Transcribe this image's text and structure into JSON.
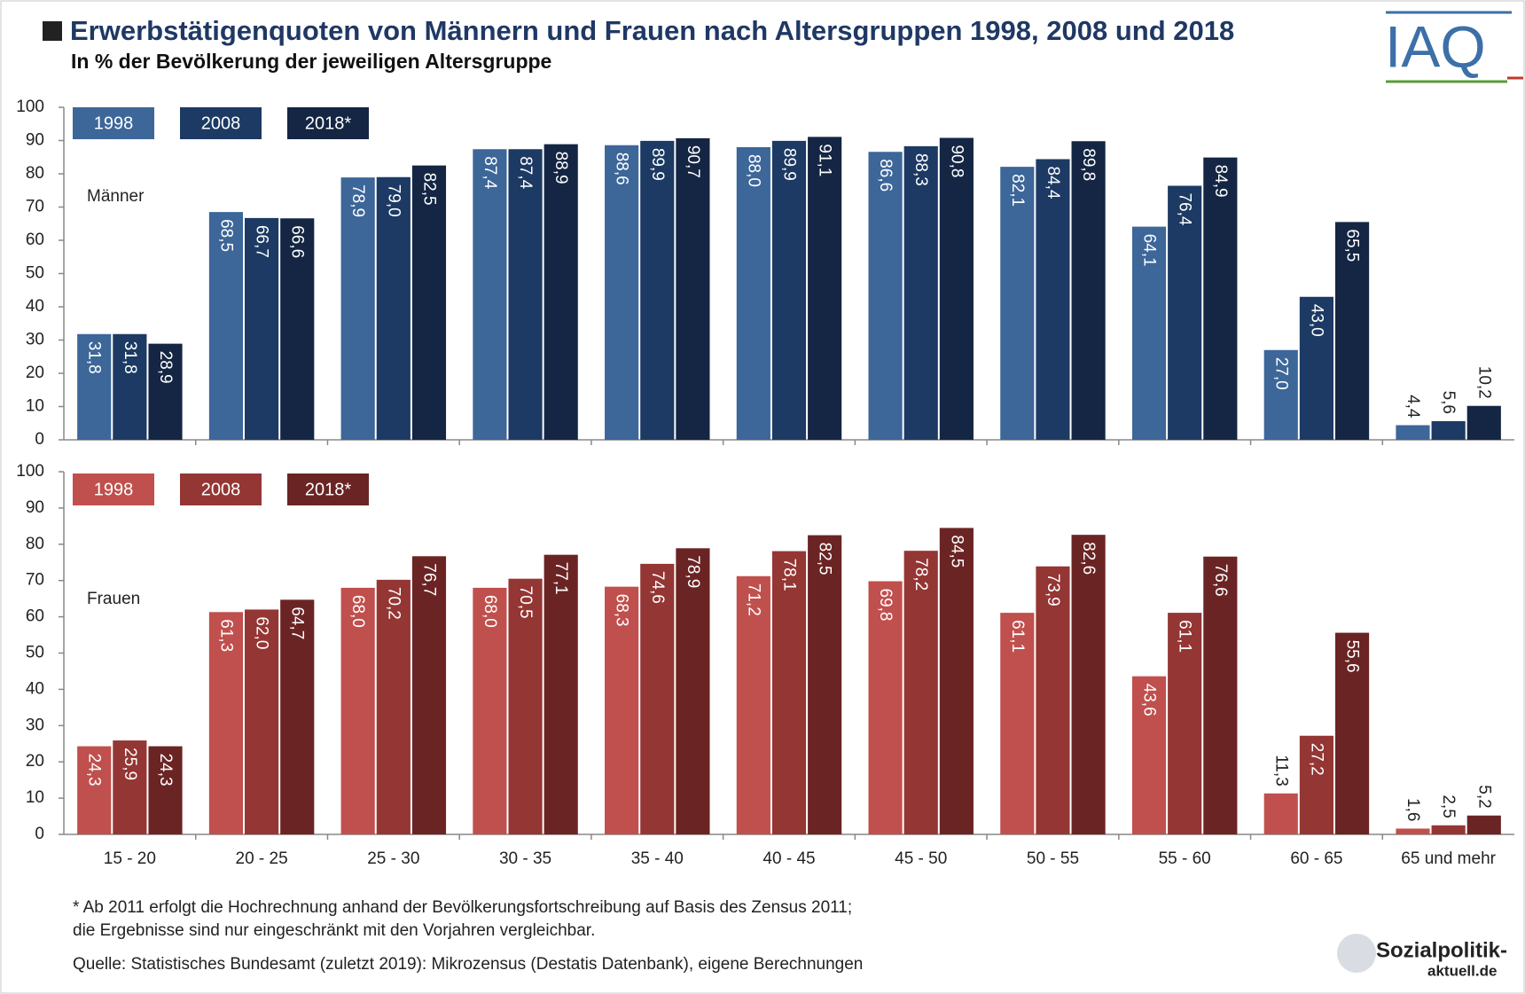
{
  "title": "Erwerbstätigenquoten von Männern und Frauen nach Altersgruppen 1998, 2008 und 2018",
  "subtitle": "In % der Bevölkerung der jeweiligen Altersgruppe",
  "logo": "IAQ",
  "footnote": [
    "* Ab 2011 erfolgt die Hochrechnung anhand der Bevölkerungsfortschreibung auf Basis des Zensus 2011;",
    "die Ergebnisse sind nur eingeschränkt mit den Vorjahren vergleichbar."
  ],
  "source": "Quelle: Statistisches Bundesamt (zuletzt 2019): Mikrozensus (Destatis Datenbank), eigene Berechnungen",
  "brand": [
    "Sozialpolitik-",
    "aktuell.de"
  ],
  "chart_data": [
    {
      "type": "bar",
      "annotation": "Männer",
      "categories": [
        null,
        null,
        null,
        null,
        null,
        null,
        null,
        null,
        null,
        null,
        null
      ],
      "ylim": [
        0,
        100
      ],
      "yticks": [
        0,
        10,
        20,
        30,
        40,
        50,
        60,
        70,
        80,
        90,
        100
      ],
      "grid": false,
      "series": [
        {
          "name": "1998",
          "color": "#3d6699",
          "values": [
            31.8,
            68.5,
            78.9,
            87.4,
            88.6,
            88.0,
            86.6,
            82.1,
            64.1,
            27.0,
            4.4
          ],
          "value_labels": [
            "31,8",
            "68,5",
            "78,9",
            "87,4",
            "88,6",
            "88,0",
            "86,6",
            "82,1",
            "64,1",
            "27,0",
            "4,4"
          ]
        },
        {
          "name": "2008",
          "color": "#1c3a63",
          "values": [
            31.8,
            66.7,
            79.0,
            87.4,
            89.9,
            89.9,
            88.3,
            84.4,
            76.4,
            43.0,
            5.6
          ],
          "value_labels": [
            "31,8",
            "66,7",
            "79,0",
            "87,4",
            "89,9",
            "89,9",
            "88,3",
            "84,4",
            "76,4",
            "43,0",
            "5,6"
          ]
        },
        {
          "name": "2018*",
          "color": "#142643",
          "values": [
            28.9,
            66.6,
            82.5,
            88.9,
            90.7,
            91.1,
            90.8,
            89.8,
            84.9,
            65.5,
            10.2
          ],
          "value_labels": [
            "28,9",
            "66,6",
            "82,5",
            "88,9",
            "90,7",
            "91,1",
            "90,8",
            "89,8",
            "84,9",
            "65,5",
            "10,2"
          ]
        }
      ]
    },
    {
      "type": "bar",
      "annotation": "Frauen",
      "categories": [
        "15 - 20",
        "20 - 25",
        "25 - 30",
        "30 - 35",
        "35 - 40",
        "40 - 45",
        "45 - 50",
        "50 - 55",
        "55 - 60",
        "60 - 65",
        "65 und mehr"
      ],
      "ylim": [
        0,
        100
      ],
      "yticks": [
        0,
        10,
        20,
        30,
        40,
        50,
        60,
        70,
        80,
        90,
        100
      ],
      "grid": false,
      "series": [
        {
          "name": "1998",
          "color": "#c0504d",
          "values": [
            24.3,
            61.3,
            68.0,
            68.0,
            68.3,
            71.2,
            69.8,
            61.1,
            43.6,
            11.3,
            1.6
          ],
          "value_labels": [
            "24,3",
            "61,3",
            "68,0",
            "68,0",
            "68,3",
            "71,2",
            "69,8",
            "61,1",
            "43,6",
            "11,3",
            "1,6"
          ]
        },
        {
          "name": "2008",
          "color": "#943634",
          "values": [
            25.9,
            62.0,
            70.2,
            70.5,
            74.6,
            78.1,
            78.2,
            73.9,
            61.1,
            27.2,
            2.5
          ],
          "value_labels": [
            "25,9",
            "62,0",
            "70,2",
            "70,5",
            "74,6",
            "78,1",
            "78,2",
            "73,9",
            "61,1",
            "27,2",
            "2,5"
          ]
        },
        {
          "name": "2018*",
          "color": "#6b2424",
          "values": [
            24.3,
            64.7,
            76.7,
            77.1,
            78.9,
            82.5,
            84.5,
            82.6,
            76.6,
            55.6,
            5.2
          ],
          "value_labels": [
            "24,3",
            "64,7",
            "76,7",
            "77,1",
            "78,9",
            "82,5",
            "84,5",
            "82,6",
            "76,6",
            "55,6",
            "5,2"
          ]
        }
      ]
    }
  ]
}
